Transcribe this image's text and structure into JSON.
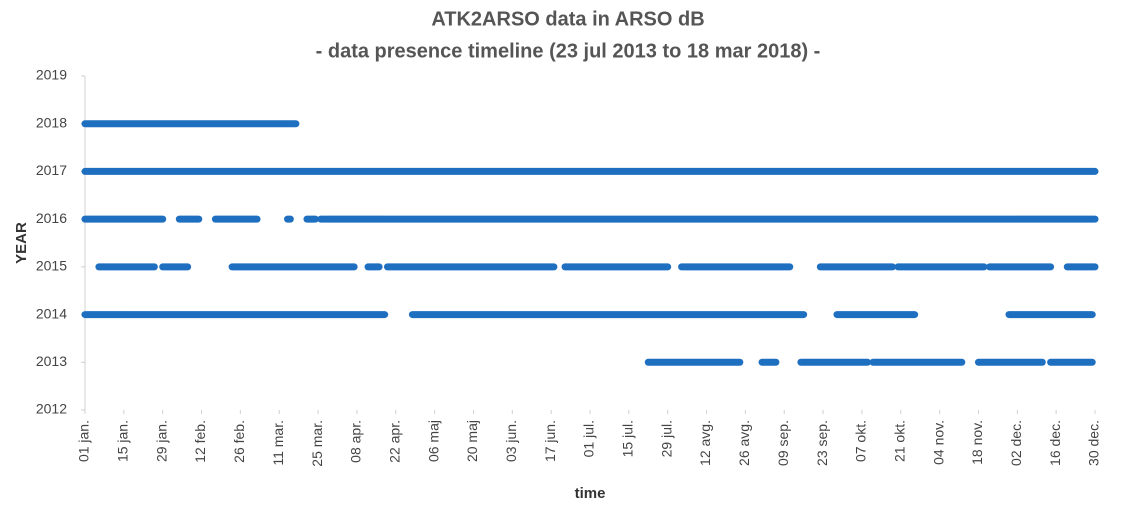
{
  "chart_data": {
    "type": "timeline",
    "title": "ATK2ARSO data in ARSO dB",
    "subtitle": "- data presence timeline (23 jul 2013 to 18 mar 2018) -",
    "x_label": "time",
    "y_label": "YEAR",
    "color": "#1f6fc0",
    "xlim": [
      1,
      365
    ],
    "xticks": [
      {
        "value": 1,
        "label": "01 jan."
      },
      {
        "value": 15,
        "label": "15 jan."
      },
      {
        "value": 29,
        "label": "29 jan."
      },
      {
        "value": 43,
        "label": "12 feb."
      },
      {
        "value": 57,
        "label": "26 feb."
      },
      {
        "value": 71,
        "label": "11 mar."
      },
      {
        "value": 85,
        "label": "25 mar."
      },
      {
        "value": 99,
        "label": "08 apr."
      },
      {
        "value": 113,
        "label": "22 apr."
      },
      {
        "value": 127,
        "label": "06 maj"
      },
      {
        "value": 141,
        "label": "20 maj"
      },
      {
        "value": 155,
        "label": "03 jun."
      },
      {
        "value": 169,
        "label": "17 jun."
      },
      {
        "value": 183,
        "label": "01 jul."
      },
      {
        "value": 197,
        "label": "15 jul."
      },
      {
        "value": 211,
        "label": "29 jul."
      },
      {
        "value": 225,
        "label": "12 avg."
      },
      {
        "value": 239,
        "label": "26 avg."
      },
      {
        "value": 253,
        "label": "09 sep."
      },
      {
        "value": 267,
        "label": "23 sep."
      },
      {
        "value": 281,
        "label": "07 okt."
      },
      {
        "value": 295,
        "label": "21 okt."
      },
      {
        "value": 309,
        "label": "04 nov."
      },
      {
        "value": 323,
        "label": "18 nov."
      },
      {
        "value": 337,
        "label": "02 dec."
      },
      {
        "value": 351,
        "label": "16 dec."
      },
      {
        "value": 365,
        "label": "30 dec."
      }
    ],
    "ylim": [
      2012,
      2019
    ],
    "yticks": [
      2012,
      2013,
      2014,
      2015,
      2016,
      2017,
      2018,
      2019
    ],
    "rows": [
      {
        "year": 2018,
        "segments": [
          [
            1,
            77
          ]
        ]
      },
      {
        "year": 2017,
        "segments": [
          [
            1,
            365
          ]
        ]
      },
      {
        "year": 2016,
        "segments": [
          [
            1,
            29
          ],
          [
            35,
            42
          ],
          [
            48,
            63
          ],
          [
            74,
            75
          ],
          [
            81,
            84
          ],
          [
            86,
            365
          ]
        ]
      },
      {
        "year": 2015,
        "segments": [
          [
            6,
            26
          ],
          [
            29,
            38
          ],
          [
            54,
            98
          ],
          [
            103,
            107
          ],
          [
            110,
            170
          ],
          [
            174,
            211
          ],
          [
            216,
            255
          ],
          [
            266,
            292
          ],
          [
            294,
            325
          ],
          [
            327,
            349
          ],
          [
            355,
            365
          ]
        ]
      },
      {
        "year": 2014,
        "segments": [
          [
            1,
            109
          ],
          [
            119,
            260
          ],
          [
            272,
            300
          ],
          [
            334,
            364
          ]
        ]
      },
      {
        "year": 2013,
        "segments": [
          [
            204,
            237
          ],
          [
            245,
            250
          ],
          [
            259,
            283
          ],
          [
            285,
            317
          ],
          [
            323,
            346
          ],
          [
            349,
            364
          ]
        ]
      }
    ]
  }
}
